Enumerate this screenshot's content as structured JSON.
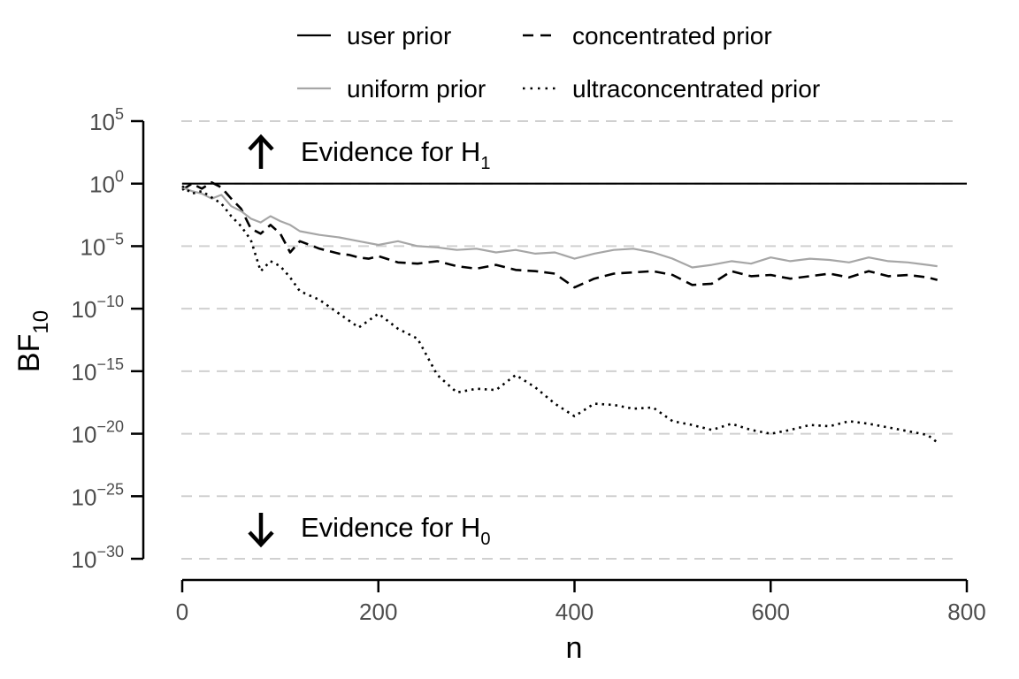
{
  "chart_data": {
    "type": "line",
    "title": "",
    "xlabel": "n",
    "ylabel": "BF",
    "ylabel_sub": "10",
    "y_scale": "log10",
    "xlim": [
      0,
      800
    ],
    "ylim_log10": [
      -30,
      5
    ],
    "x_ticks": [
      0,
      200,
      400,
      600,
      800
    ],
    "x_tick_labels": [
      "0",
      "200",
      "400",
      "600",
      "800"
    ],
    "y_ticks_log10": [
      5,
      0,
      -5,
      -10,
      -15,
      -20,
      -25,
      -30
    ],
    "y_tick_base": "10",
    "y_tick_exponents": [
      "5",
      "0",
      "−5",
      "−10",
      "−15",
      "−20",
      "−25",
      "−30"
    ],
    "grid": "horizontal dashed at y ticks",
    "legend_position": "top",
    "reference_line_log10": 0,
    "annotations": {
      "h1_text": "Evidence for H",
      "h1_sub": "1",
      "h0_text": "Evidence for H",
      "h0_sub": "0"
    },
    "series": [
      {
        "name": "user prior",
        "style": "solid",
        "color": "#000000",
        "x": [
          0,
          800
        ],
        "log10_values": [
          0,
          0
        ]
      },
      {
        "name": "concentrated prior",
        "style": "dashed",
        "color": "#000000",
        "x": [
          0,
          10,
          20,
          30,
          40,
          50,
          60,
          70,
          80,
          90,
          100,
          110,
          120,
          130,
          140,
          150,
          160,
          170,
          180,
          190,
          200,
          220,
          240,
          260,
          280,
          300,
          320,
          340,
          360,
          380,
          400,
          420,
          440,
          460,
          480,
          500,
          520,
          540,
          560,
          580,
          600,
          620,
          640,
          660,
          680,
          700,
          720,
          740,
          760,
          770
        ],
        "log10_values": [
          -0.5,
          0,
          -0.4,
          0.1,
          -0.3,
          -1.2,
          -2.0,
          -3.6,
          -4.0,
          -3.3,
          -4.0,
          -5.5,
          -4.6,
          -4.9,
          -5.2,
          -5.4,
          -5.6,
          -5.7,
          -5.9,
          -6.0,
          -5.8,
          -6.3,
          -6.4,
          -6.2,
          -6.6,
          -6.8,
          -6.5,
          -6.9,
          -7.0,
          -7.2,
          -8.3,
          -7.6,
          -7.2,
          -7.1,
          -7.0,
          -7.3,
          -8.1,
          -8.0,
          -7.0,
          -7.4,
          -7.3,
          -7.6,
          -7.4,
          -7.2,
          -7.5,
          -7.0,
          -7.4,
          -7.3,
          -7.5,
          -7.7
        ]
      },
      {
        "name": "uniform prior",
        "style": "solid",
        "color": "#a6a6a6",
        "x": [
          0,
          10,
          20,
          30,
          40,
          50,
          60,
          70,
          80,
          90,
          100,
          110,
          120,
          140,
          160,
          180,
          200,
          220,
          240,
          260,
          280,
          300,
          320,
          340,
          360,
          380,
          400,
          420,
          440,
          460,
          480,
          500,
          520,
          540,
          560,
          580,
          600,
          620,
          640,
          660,
          680,
          700,
          720,
          740,
          760,
          770
        ],
        "log10_values": [
          -0.3,
          -0.6,
          -0.8,
          -1.2,
          -0.9,
          -1.8,
          -2.2,
          -2.8,
          -3.1,
          -2.6,
          -3.0,
          -3.3,
          -3.8,
          -4.1,
          -4.3,
          -4.6,
          -4.9,
          -4.6,
          -5.0,
          -5.1,
          -5.3,
          -5.2,
          -5.5,
          -5.3,
          -5.6,
          -5.5,
          -6.0,
          -5.6,
          -5.3,
          -5.2,
          -5.5,
          -6.0,
          -6.7,
          -6.5,
          -6.2,
          -6.4,
          -5.9,
          -6.2,
          -6.0,
          -6.1,
          -6.3,
          -5.9,
          -6.2,
          -6.3,
          -6.5,
          -6.6
        ]
      },
      {
        "name": "ultraconcentrated prior",
        "style": "dotted",
        "color": "#000000",
        "x": [
          0,
          10,
          20,
          30,
          40,
          50,
          60,
          70,
          80,
          90,
          100,
          110,
          120,
          140,
          160,
          180,
          200,
          220,
          240,
          260,
          280,
          300,
          320,
          340,
          360,
          380,
          400,
          420,
          440,
          460,
          480,
          500,
          520,
          540,
          560,
          580,
          600,
          620,
          640,
          660,
          680,
          700,
          720,
          740,
          760,
          770
        ],
        "log10_values": [
          -0.2,
          -0.8,
          -0.6,
          -1.1,
          -1.6,
          -2.6,
          -3.4,
          -4.5,
          -7.0,
          -6.2,
          -6.6,
          -7.5,
          -8.6,
          -9.3,
          -10.4,
          -11.5,
          -10.4,
          -11.6,
          -12.4,
          -15.3,
          -16.7,
          -16.4,
          -16.5,
          -15.3,
          -16.3,
          -17.6,
          -18.6,
          -17.6,
          -17.7,
          -18.0,
          -17.9,
          -19.0,
          -19.3,
          -19.7,
          -19.2,
          -19.7,
          -20.0,
          -19.7,
          -19.3,
          -19.4,
          -19.0,
          -19.2,
          -19.5,
          -19.8,
          -20.1,
          -20.7
        ]
      }
    ]
  }
}
